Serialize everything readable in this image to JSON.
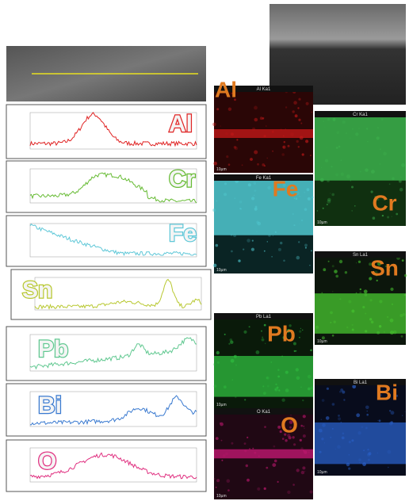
{
  "line_scans": [
    {
      "label": "Al"
    },
    {
      "label": "Cr"
    },
    {
      "label": "Fe"
    },
    {
      "label": "Sn"
    },
    {
      "label": "Pb"
    },
    {
      "label": "Bi"
    },
    {
      "label": "O"
    }
  ],
  "maps": [
    {
      "header": "Al Ka1",
      "label": "Al",
      "scale": "10µm"
    },
    {
      "header": "Fe Ka1",
      "label": "Fe",
      "scale": "10µm"
    },
    {
      "header": "Pb La1",
      "label": "Pb",
      "scale": "10µm"
    },
    {
      "header": "O Ka1",
      "label": "O",
      "scale": "10µm"
    },
    {
      "header": "Cr Ka1",
      "label": "Cr",
      "scale": "10µm"
    },
    {
      "header": "Sn La1",
      "label": "Sn",
      "scale": "10µm"
    },
    {
      "header": "Bi La1",
      "label": "Bi",
      "scale": "10µm"
    }
  ]
}
